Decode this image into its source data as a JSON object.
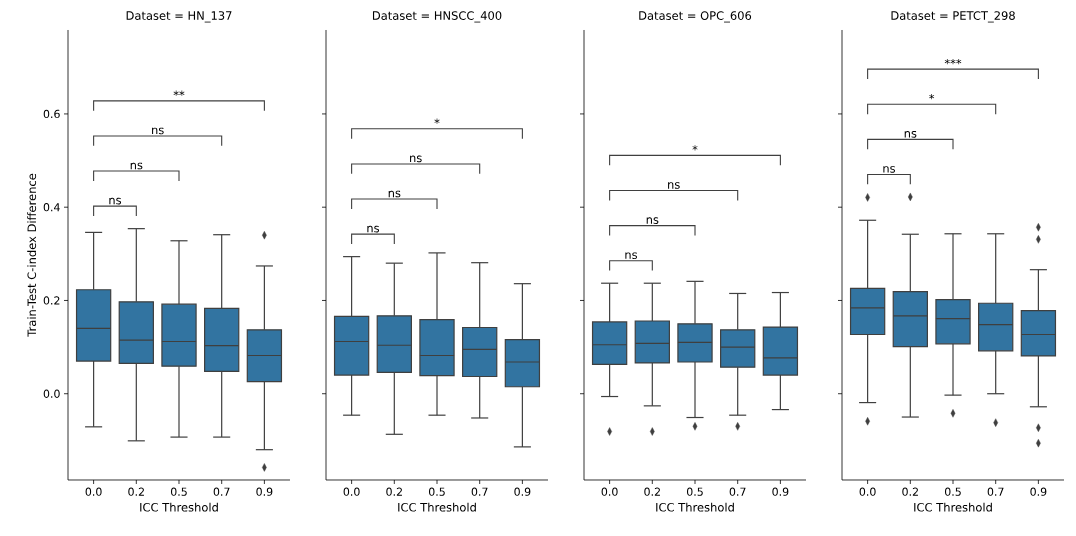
{
  "chart_data": [
    {
      "type": "box",
      "title": "Dataset = HN_137",
      "xlabel": "ICC Threshold",
      "ylabel": "Train-Test C-index Difference",
      "color": "#3274a1",
      "categories": [
        "0.0",
        "0.2",
        "0.5",
        "0.7",
        "0.9"
      ],
      "boxes": [
        {
          "low": -0.071,
          "q1": 0.07,
          "median": 0.14,
          "q3": 0.223,
          "high": 0.346
        },
        {
          "low": -0.101,
          "q1": 0.065,
          "median": 0.115,
          "q3": 0.197,
          "high": 0.354
        },
        {
          "low": -0.093,
          "q1": 0.059,
          "median": 0.112,
          "q3": 0.192,
          "high": 0.328
        },
        {
          "low": -0.093,
          "q1": 0.048,
          "median": 0.103,
          "q3": 0.183,
          "high": 0.341
        },
        {
          "low": -0.12,
          "q1": 0.026,
          "median": 0.082,
          "q3": 0.137,
          "high": 0.274,
          "outliers": [
            0.34,
            -0.158
          ]
        }
      ],
      "ylim": [
        -0.185,
        0.78
      ],
      "yticks": [
        {
          "value": 0,
          "label": "0.0"
        },
        {
          "value": 0.2,
          "label": "0.2"
        },
        {
          "value": 0.4,
          "label": "0.4"
        },
        {
          "value": 0.6,
          "label": "0.6"
        }
      ],
      "annotations": [
        "ns",
        "ns",
        "ns",
        "**"
      ]
    },
    {
      "type": "box",
      "title": "Dataset = HNSCC_400",
      "xlabel": "ICC Threshold",
      "color": "#3274a1",
      "tick_labels": "x",
      "categories": [
        "0.0",
        "0.2",
        "0.5",
        "0.7",
        "0.9"
      ],
      "boxes": [
        {
          "low": -0.046,
          "q1": 0.04,
          "median": 0.112,
          "q3": 0.166,
          "high": 0.294
        },
        {
          "low": -0.087,
          "q1": 0.046,
          "median": 0.104,
          "q3": 0.167,
          "high": 0.28
        },
        {
          "low": -0.046,
          "q1": 0.039,
          "median": 0.082,
          "q3": 0.159,
          "high": 0.302
        },
        {
          "low": -0.052,
          "q1": 0.037,
          "median": 0.095,
          "q3": 0.142,
          "high": 0.281
        },
        {
          "low": -0.114,
          "q1": 0.015,
          "median": 0.068,
          "q3": 0.116,
          "high": 0.236
        }
      ],
      "ylim": [
        -0.185,
        0.78
      ],
      "yticks": [
        0,
        0.2,
        0.4,
        0.6
      ],
      "annotations": [
        "ns",
        "ns",
        "ns",
        "*"
      ]
    },
    {
      "type": "box",
      "title": "Dataset = OPC_606",
      "xlabel": "ICC Threshold",
      "color": "#3274a1",
      "tick_labels": "x",
      "categories": [
        "0.0",
        "0.2",
        "0.5",
        "0.7",
        "0.9"
      ],
      "boxes": [
        {
          "low": -0.006,
          "q1": 0.063,
          "median": 0.105,
          "q3": 0.154,
          "high": 0.237,
          "outliers": [
            -0.081
          ]
        },
        {
          "low": -0.026,
          "q1": 0.066,
          "median": 0.108,
          "q3": 0.156,
          "high": 0.237,
          "outliers": [
            -0.081
          ]
        },
        {
          "low": -0.051,
          "q1": 0.068,
          "median": 0.11,
          "q3": 0.15,
          "high": 0.241,
          "outliers": [
            -0.07
          ]
        },
        {
          "low": -0.046,
          "q1": 0.057,
          "median": 0.1,
          "q3": 0.137,
          "high": 0.215,
          "outliers": [
            -0.07
          ]
        },
        {
          "low": -0.034,
          "q1": 0.04,
          "median": 0.077,
          "q3": 0.143,
          "high": 0.217
        }
      ],
      "ylim": [
        -0.185,
        0.78
      ],
      "yticks": [
        0,
        0.2,
        0.4,
        0.6
      ],
      "annotations": [
        "ns",
        "ns",
        "ns",
        "*"
      ]
    },
    {
      "type": "box",
      "title": "Dataset = PETCT_298",
      "xlabel": "ICC Threshold",
      "color": "#3274a1",
      "tick_labels": "x",
      "categories": [
        "0.0",
        "0.2",
        "0.5",
        "0.7",
        "0.9"
      ],
      "boxes": [
        {
          "low": -0.019,
          "q1": 0.127,
          "median": 0.184,
          "q3": 0.226,
          "high": 0.372,
          "outliers": [
            0.421,
            -0.059
          ]
        },
        {
          "low": -0.05,
          "q1": 0.101,
          "median": 0.167,
          "q3": 0.219,
          "high": 0.342,
          "outliers": [
            0.422
          ]
        },
        {
          "low": -0.003,
          "q1": 0.107,
          "median": 0.161,
          "q3": 0.202,
          "high": 0.343,
          "outliers": [
            -0.042
          ]
        },
        {
          "low": 0.0,
          "q1": 0.092,
          "median": 0.148,
          "q3": 0.194,
          "high": 0.343,
          "outliers": [
            -0.062
          ]
        },
        {
          "low": -0.028,
          "q1": 0.081,
          "median": 0.127,
          "q3": 0.178,
          "high": 0.266,
          "outliers": [
            0.357,
            0.331,
            -0.073,
            -0.106
          ]
        }
      ],
      "ylim": [
        -0.185,
        0.78
      ],
      "yticks": [
        0,
        0.2,
        0.4,
        0.6
      ],
      "annotations": [
        "ns",
        "ns",
        "*",
        "***"
      ]
    }
  ]
}
